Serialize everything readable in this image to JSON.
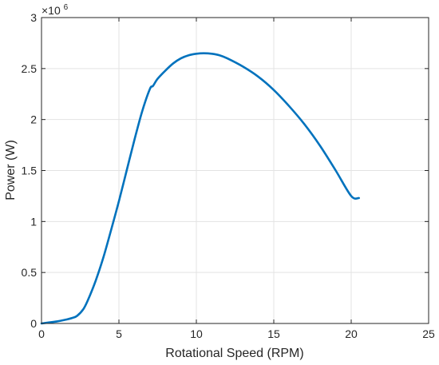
{
  "chart_data": {
    "type": "line",
    "title": "",
    "xlabel": "Rotational Speed (RPM)",
    "ylabel": "Power (W)",
    "xlim": [
      0,
      25
    ],
    "ylim": [
      0,
      3
    ],
    "y_multiplier": {
      "base": "×10",
      "exponent": "6"
    },
    "x_ticks": [
      0,
      5,
      10,
      15,
      20,
      25
    ],
    "y_ticks": [
      0,
      0.5,
      1,
      1.5,
      2,
      2.5,
      3
    ],
    "x_tick_labels": [
      "0",
      "5",
      "10",
      "15",
      "20",
      "25"
    ],
    "y_tick_labels": [
      "0",
      "0.5",
      "1",
      "1.5",
      "2",
      "2.5",
      "3"
    ],
    "grid": true,
    "colors": {
      "series": "#0072BD",
      "grid": "#e3e3e3",
      "axis": "#262626"
    },
    "series": [
      {
        "x": [
          0,
          0.5,
          1,
          1.5,
          2,
          2.3,
          2.7,
          3,
          3.5,
          4,
          4.5,
          5,
          5.5,
          6,
          6.5,
          7,
          7.2,
          7.5,
          8,
          8.5,
          9,
          9.5,
          10,
          10.5,
          11,
          11.5,
          12,
          13,
          14,
          15,
          16,
          17,
          18,
          19,
          20,
          20.5
        ],
        "values": [
          0,
          0.01,
          0.02,
          0.035,
          0.055,
          0.075,
          0.14,
          0.23,
          0.42,
          0.65,
          0.92,
          1.2,
          1.5,
          1.8,
          2.08,
          2.3,
          2.33,
          2.4,
          2.48,
          2.55,
          2.6,
          2.63,
          2.645,
          2.65,
          2.645,
          2.63,
          2.6,
          2.52,
          2.42,
          2.29,
          2.13,
          1.95,
          1.74,
          1.5,
          1.25,
          1.23
        ]
      }
    ]
  }
}
